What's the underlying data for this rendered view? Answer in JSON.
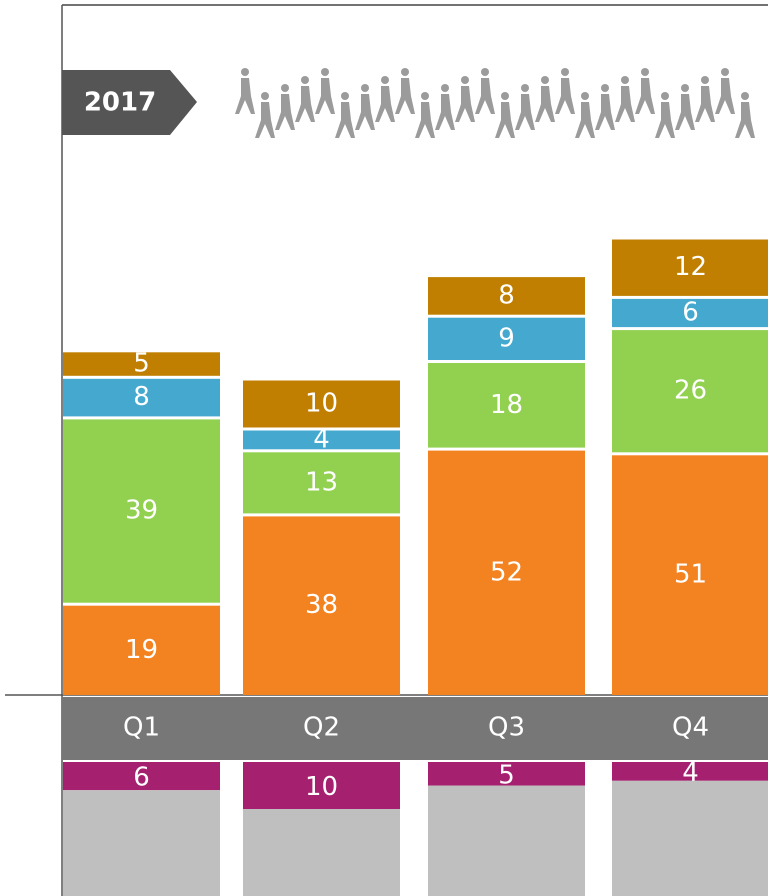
{
  "chart_data": {
    "type": "stacked_bar",
    "title": "2017",
    "categories": [
      "Q1",
      "Q2",
      "Q3",
      "Q4"
    ],
    "ylim": [
      0,
      140
    ],
    "series": [
      {
        "color": "#f38220",
        "values": [
          19,
          38,
          52,
          51
        ]
      },
      {
        "color": "#92d050",
        "values": [
          39,
          13,
          18,
          26
        ]
      },
      {
        "color": "#45a9cf",
        "values": [
          8,
          4,
          9,
          6
        ]
      },
      {
        "color": "#c07f00",
        "values": [
          5,
          10,
          8,
          12
        ]
      }
    ],
    "series_below": [
      {
        "color": "#a5206e",
        "values": [
          6,
          10,
          5,
          4
        ]
      }
    ]
  }
}
